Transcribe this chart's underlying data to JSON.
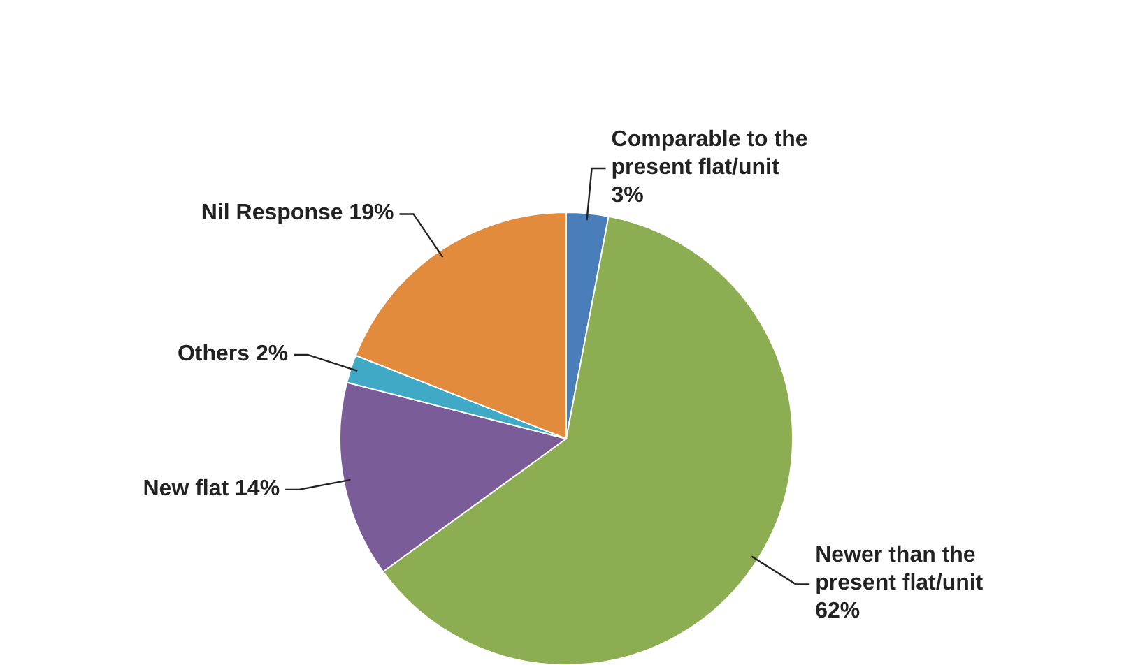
{
  "chart_data": {
    "type": "pie",
    "categories": [
      "Comparable to the present flat/unit",
      "Newer than the present flat/unit",
      "New flat",
      "Others",
      "Nil Response"
    ],
    "values": [
      3,
      62,
      14,
      2,
      19
    ],
    "colors": [
      "#4a7ebb",
      "#8cad52",
      "#7a5c98",
      "#3fa9c6",
      "#e28b3c"
    ],
    "value_labels": [
      "3%",
      "62%",
      "14%",
      "2%",
      "19%"
    ]
  }
}
